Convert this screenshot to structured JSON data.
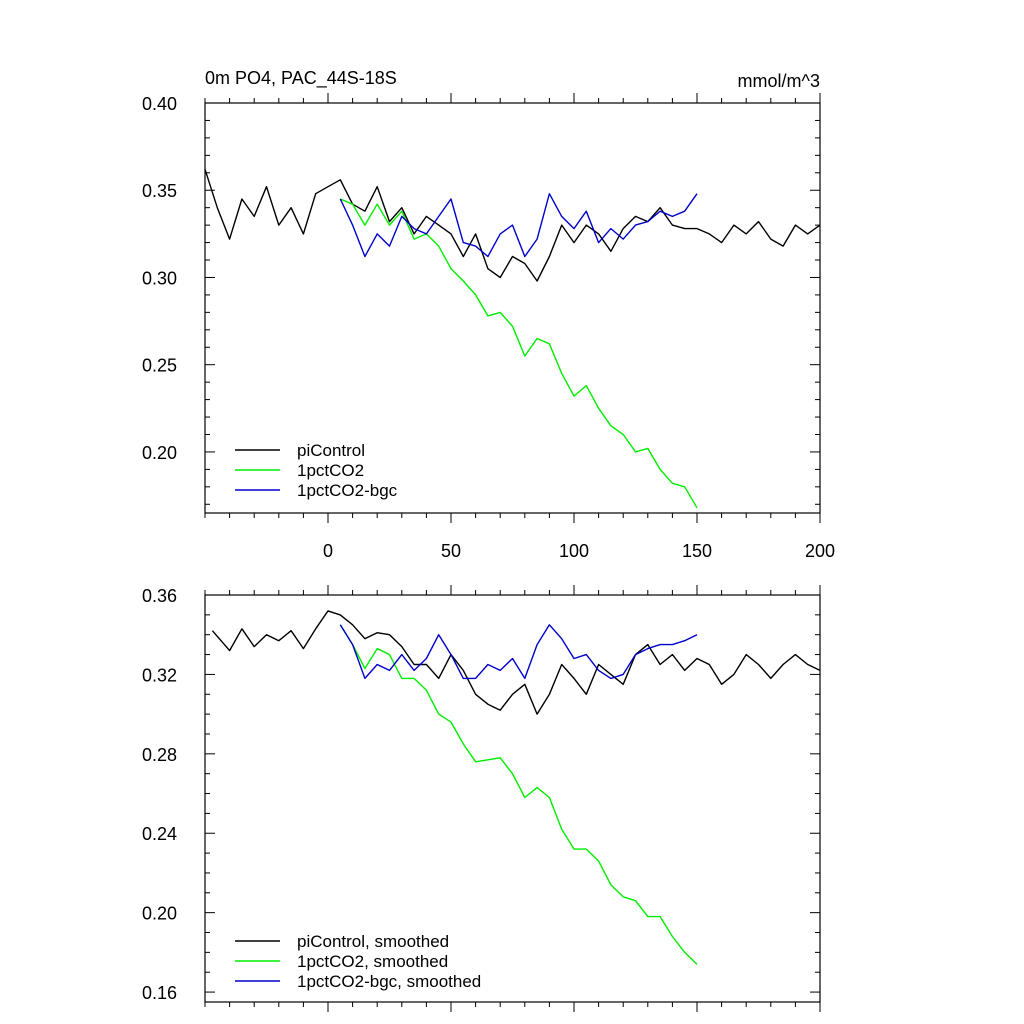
{
  "chart_data": [
    {
      "type": "line",
      "title": "0m PO4, PAC_44S-18S",
      "units": "mmol/m^3",
      "xlim": [
        -50,
        200
      ],
      "ylim": [
        0.165,
        0.4
      ],
      "x_major_ticks": [
        0,
        50,
        100,
        150,
        200
      ],
      "x_minor_step": 10,
      "y_major_ticks": [
        0.2,
        0.25,
        0.3,
        0.35,
        0.4
      ],
      "y_tick_labels": [
        "0.20",
        "0.25",
        "0.30",
        "0.35",
        "0.40"
      ],
      "y_minor_step": 0.01,
      "x_tick_labels": [
        "0",
        "50",
        "100",
        "150",
        "200"
      ],
      "legend_position": "bottom-left",
      "series": [
        {
          "name": "piControl",
          "color": "#000000",
          "x": [
            -50,
            -45,
            -40,
            -35,
            -30,
            -25,
            -20,
            -15,
            -10,
            -5,
            0,
            5,
            10,
            15,
            20,
            25,
            30,
            35,
            40,
            45,
            50,
            55,
            60,
            65,
            70,
            75,
            80,
            85,
            90,
            95,
            100,
            105,
            110,
            115,
            120,
            125,
            130,
            135,
            140,
            145,
            150,
            155,
            160,
            165,
            170,
            175,
            180,
            185,
            190,
            195,
            200
          ],
          "y": [
            0.362,
            0.34,
            0.322,
            0.345,
            0.335,
            0.352,
            0.33,
            0.34,
            0.325,
            0.348,
            0.352,
            0.356,
            0.342,
            0.338,
            0.352,
            0.332,
            0.34,
            0.325,
            0.335,
            0.33,
            0.325,
            0.312,
            0.325,
            0.305,
            0.3,
            0.312,
            0.308,
            0.298,
            0.312,
            0.33,
            0.32,
            0.33,
            0.325,
            0.315,
            0.328,
            0.335,
            0.332,
            0.34,
            0.33,
            0.328,
            0.328,
            0.325,
            0.32,
            0.33,
            0.325,
            0.332,
            0.322,
            0.318,
            0.33,
            0.325,
            0.33
          ]
        },
        {
          "name": "1pctCO2",
          "color": "#00ee00",
          "x": [
            5,
            10,
            15,
            20,
            25,
            30,
            35,
            40,
            45,
            50,
            55,
            60,
            65,
            70,
            75,
            80,
            85,
            90,
            95,
            100,
            105,
            110,
            115,
            120,
            125,
            130,
            135,
            140,
            145,
            150
          ],
          "y": [
            0.345,
            0.342,
            0.33,
            0.342,
            0.33,
            0.338,
            0.322,
            0.325,
            0.318,
            0.305,
            0.298,
            0.29,
            0.278,
            0.28,
            0.272,
            0.255,
            0.265,
            0.262,
            0.245,
            0.232,
            0.238,
            0.225,
            0.215,
            0.21,
            0.2,
            0.202,
            0.19,
            0.182,
            0.18,
            0.168
          ]
        },
        {
          "name": "1pctCO2-bgc",
          "color": "#0000cc",
          "x": [
            5,
            10,
            15,
            20,
            25,
            30,
            35,
            40,
            45,
            50,
            55,
            60,
            65,
            70,
            75,
            80,
            85,
            90,
            95,
            100,
            105,
            110,
            115,
            120,
            125,
            130,
            135,
            140,
            145,
            150
          ],
          "y": [
            0.345,
            0.33,
            0.312,
            0.325,
            0.318,
            0.335,
            0.328,
            0.325,
            0.335,
            0.345,
            0.32,
            0.318,
            0.312,
            0.325,
            0.33,
            0.312,
            0.322,
            0.348,
            0.335,
            0.328,
            0.338,
            0.32,
            0.328,
            0.322,
            0.33,
            0.332,
            0.338,
            0.335,
            0.338,
            0.348
          ]
        }
      ]
    },
    {
      "type": "line",
      "xlim": [
        -50,
        200
      ],
      "ylim": [
        0.155,
        0.36
      ],
      "x_major_ticks": [
        0,
        50,
        100,
        150,
        200
      ],
      "x_minor_step": 10,
      "y_major_ticks": [
        0.16,
        0.2,
        0.24,
        0.28,
        0.32,
        0.36
      ],
      "y_tick_labels": [
        "0.16",
        "0.20",
        "0.24",
        "0.28",
        "0.32",
        "0.36"
      ],
      "y_minor_step": 0.01,
      "legend_position": "bottom-left",
      "series": [
        {
          "name": "piControl, smoothed",
          "color": "#000000",
          "x": [
            -47,
            -40,
            -35,
            -30,
            -25,
            -20,
            -15,
            -10,
            -5,
            0,
            5,
            10,
            15,
            20,
            25,
            30,
            35,
            40,
            45,
            50,
            55,
            60,
            65,
            70,
            75,
            80,
            85,
            90,
            95,
            100,
            105,
            110,
            115,
            120,
            125,
            130,
            135,
            140,
            145,
            150,
            155,
            160,
            165,
            170,
            175,
            180,
            185,
            190,
            195,
            200
          ],
          "y": [
            0.342,
            0.332,
            0.343,
            0.334,
            0.34,
            0.337,
            0.342,
            0.333,
            0.343,
            0.352,
            0.35,
            0.345,
            0.338,
            0.341,
            0.34,
            0.334,
            0.325,
            0.325,
            0.318,
            0.33,
            0.322,
            0.31,
            0.305,
            0.302,
            0.31,
            0.315,
            0.3,
            0.31,
            0.325,
            0.318,
            0.31,
            0.325,
            0.32,
            0.315,
            0.33,
            0.335,
            0.325,
            0.33,
            0.322,
            0.328,
            0.325,
            0.315,
            0.32,
            0.33,
            0.325,
            0.318,
            0.325,
            0.33,
            0.325,
            0.322
          ]
        },
        {
          "name": "1pctCO2, smoothed",
          "color": "#00ee00",
          "x": [
            5,
            10,
            15,
            20,
            25,
            30,
            35,
            40,
            45,
            50,
            55,
            60,
            65,
            70,
            75,
            80,
            85,
            90,
            95,
            100,
            105,
            110,
            115,
            120,
            125,
            130,
            135,
            140,
            145,
            150
          ],
          "y": [
            0.345,
            0.335,
            0.323,
            0.333,
            0.33,
            0.318,
            0.318,
            0.312,
            0.3,
            0.296,
            0.285,
            0.276,
            0.277,
            0.278,
            0.27,
            0.258,
            0.263,
            0.258,
            0.242,
            0.232,
            0.232,
            0.226,
            0.214,
            0.208,
            0.206,
            0.198,
            0.198,
            0.188,
            0.18,
            0.174
          ]
        },
        {
          "name": "1pctCO2-bgc, smoothed",
          "color": "#0000cc",
          "x": [
            5,
            10,
            15,
            20,
            25,
            30,
            35,
            40,
            45,
            50,
            55,
            60,
            65,
            70,
            75,
            80,
            85,
            90,
            95,
            100,
            105,
            110,
            115,
            120,
            125,
            130,
            135,
            140,
            145,
            150
          ],
          "y": [
            0.345,
            0.335,
            0.318,
            0.325,
            0.322,
            0.33,
            0.322,
            0.328,
            0.34,
            0.33,
            0.318,
            0.318,
            0.325,
            0.322,
            0.328,
            0.318,
            0.335,
            0.345,
            0.338,
            0.328,
            0.33,
            0.322,
            0.318,
            0.32,
            0.33,
            0.333,
            0.335,
            0.335,
            0.337,
            0.34
          ]
        }
      ]
    }
  ]
}
